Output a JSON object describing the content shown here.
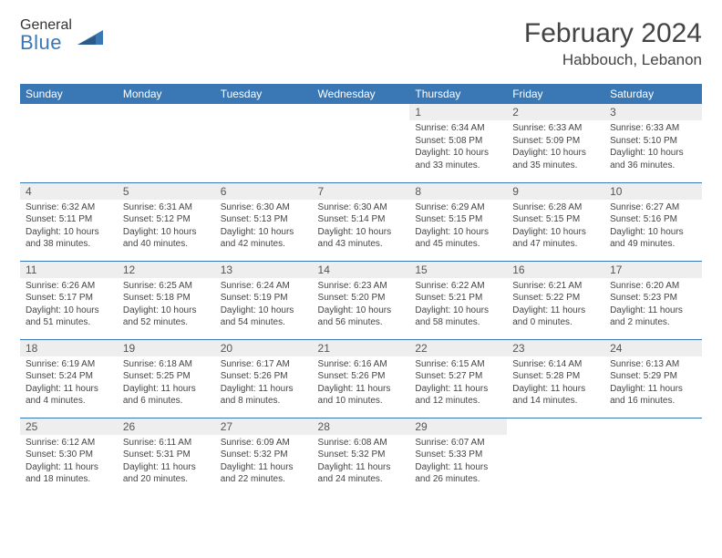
{
  "logo": {
    "line1": "General",
    "line2": "Blue"
  },
  "colors": {
    "brand_blue": "#3a78b5",
    "header_text": "#444444",
    "cell_header_bg": "#eeeeee",
    "body_text": "#444444",
    "logo_gray": "#6a6a6a"
  },
  "title": "February 2024",
  "location": "Habbouch, Lebanon",
  "weekdays": [
    "Sunday",
    "Monday",
    "Tuesday",
    "Wednesday",
    "Thursday",
    "Friday",
    "Saturday"
  ],
  "grid": {
    "rows": 5,
    "cols": 7,
    "first_weekday_index": 4,
    "days_in_month": 29
  },
  "typography": {
    "title_fontsize": 30,
    "location_fontsize": 17,
    "weekday_fontsize": 12,
    "daynum_fontsize": 12,
    "body_fontsize": 10
  },
  "days": {
    "1": {
      "sunrise": "6:34 AM",
      "sunset": "5:08 PM",
      "daylight": "10 hours and 33 minutes."
    },
    "2": {
      "sunrise": "6:33 AM",
      "sunset": "5:09 PM",
      "daylight": "10 hours and 35 minutes."
    },
    "3": {
      "sunrise": "6:33 AM",
      "sunset": "5:10 PM",
      "daylight": "10 hours and 36 minutes."
    },
    "4": {
      "sunrise": "6:32 AM",
      "sunset": "5:11 PM",
      "daylight": "10 hours and 38 minutes."
    },
    "5": {
      "sunrise": "6:31 AM",
      "sunset": "5:12 PM",
      "daylight": "10 hours and 40 minutes."
    },
    "6": {
      "sunrise": "6:30 AM",
      "sunset": "5:13 PM",
      "daylight": "10 hours and 42 minutes."
    },
    "7": {
      "sunrise": "6:30 AM",
      "sunset": "5:14 PM",
      "daylight": "10 hours and 43 minutes."
    },
    "8": {
      "sunrise": "6:29 AM",
      "sunset": "5:15 PM",
      "daylight": "10 hours and 45 minutes."
    },
    "9": {
      "sunrise": "6:28 AM",
      "sunset": "5:15 PM",
      "daylight": "10 hours and 47 minutes."
    },
    "10": {
      "sunrise": "6:27 AM",
      "sunset": "5:16 PM",
      "daylight": "10 hours and 49 minutes."
    },
    "11": {
      "sunrise": "6:26 AM",
      "sunset": "5:17 PM",
      "daylight": "10 hours and 51 minutes."
    },
    "12": {
      "sunrise": "6:25 AM",
      "sunset": "5:18 PM",
      "daylight": "10 hours and 52 minutes."
    },
    "13": {
      "sunrise": "6:24 AM",
      "sunset": "5:19 PM",
      "daylight": "10 hours and 54 minutes."
    },
    "14": {
      "sunrise": "6:23 AM",
      "sunset": "5:20 PM",
      "daylight": "10 hours and 56 minutes."
    },
    "15": {
      "sunrise": "6:22 AM",
      "sunset": "5:21 PM",
      "daylight": "10 hours and 58 minutes."
    },
    "16": {
      "sunrise": "6:21 AM",
      "sunset": "5:22 PM",
      "daylight": "11 hours and 0 minutes."
    },
    "17": {
      "sunrise": "6:20 AM",
      "sunset": "5:23 PM",
      "daylight": "11 hours and 2 minutes."
    },
    "18": {
      "sunrise": "6:19 AM",
      "sunset": "5:24 PM",
      "daylight": "11 hours and 4 minutes."
    },
    "19": {
      "sunrise": "6:18 AM",
      "sunset": "5:25 PM",
      "daylight": "11 hours and 6 minutes."
    },
    "20": {
      "sunrise": "6:17 AM",
      "sunset": "5:26 PM",
      "daylight": "11 hours and 8 minutes."
    },
    "21": {
      "sunrise": "6:16 AM",
      "sunset": "5:26 PM",
      "daylight": "11 hours and 10 minutes."
    },
    "22": {
      "sunrise": "6:15 AM",
      "sunset": "5:27 PM",
      "daylight": "11 hours and 12 minutes."
    },
    "23": {
      "sunrise": "6:14 AM",
      "sunset": "5:28 PM",
      "daylight": "11 hours and 14 minutes."
    },
    "24": {
      "sunrise": "6:13 AM",
      "sunset": "5:29 PM",
      "daylight": "11 hours and 16 minutes."
    },
    "25": {
      "sunrise": "6:12 AM",
      "sunset": "5:30 PM",
      "daylight": "11 hours and 18 minutes."
    },
    "26": {
      "sunrise": "6:11 AM",
      "sunset": "5:31 PM",
      "daylight": "11 hours and 20 minutes."
    },
    "27": {
      "sunrise": "6:09 AM",
      "sunset": "5:32 PM",
      "daylight": "11 hours and 22 minutes."
    },
    "28": {
      "sunrise": "6:08 AM",
      "sunset": "5:32 PM",
      "daylight": "11 hours and 24 minutes."
    },
    "29": {
      "sunrise": "6:07 AM",
      "sunset": "5:33 PM",
      "daylight": "11 hours and 26 minutes."
    }
  },
  "labels": {
    "sunrise": "Sunrise: ",
    "sunset": "Sunset: ",
    "daylight": "Daylight: "
  }
}
